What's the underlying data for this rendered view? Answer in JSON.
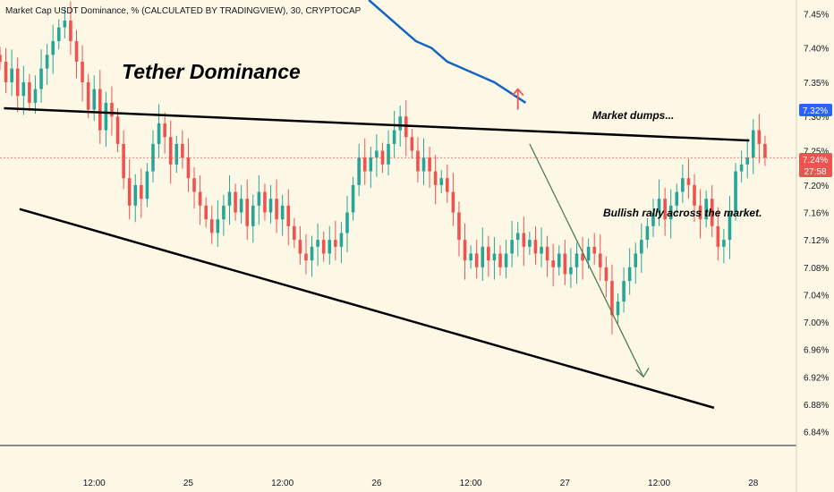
{
  "header": {
    "symbol_title": "Market Cap USDT Dominance, % (CALCULATED BY TRADINGVIEW), 30, CRYPTOCAP"
  },
  "annotations": {
    "headline": "Tether Dominance",
    "dump_note": "Market dumps...",
    "rally_note": "Bullish rally across the market."
  },
  "price_badge": {
    "ma_value": "7.32%",
    "last_value": "7.24%",
    "countdown": "27:58"
  },
  "colors": {
    "background": "#fdf8e6",
    "up": "#26a69a",
    "down": "#ef5350",
    "ma_line": "#1565c0",
    "trendline": "#000000",
    "projection": "#4f7a4f",
    "dump_arrow": "#ef5350",
    "ma_badge": "#2962ff",
    "last_badge": "#ef5350"
  },
  "chart_data": {
    "type": "candlestick",
    "title": "Market Cap USDT Dominance, % (CALCULATED BY TRADINGVIEW), 30, CRYPTOCAP",
    "y_axis": {
      "position": "right",
      "unit": "%",
      "ylim": [
        6.82,
        7.47
      ],
      "ticks": [
        "7.45%",
        "7.40%",
        "7.35%",
        "7.30%",
        "7.25%",
        "7.20%",
        "7.16%",
        "7.12%",
        "7.08%",
        "7.04%",
        "7.00%",
        "6.96%",
        "6.92%",
        "6.88%",
        "6.84%"
      ]
    },
    "x_axis": {
      "ticks": [
        {
          "label": "12:00",
          "t": 36
        },
        {
          "label": "25",
          "t": 60
        },
        {
          "label": "12:00",
          "t": 84
        },
        {
          "label": "26",
          "t": 108
        },
        {
          "label": "12:00",
          "t": 132
        },
        {
          "label": "27",
          "t": 156
        },
        {
          "label": "12:00",
          "t": 180
        },
        {
          "label": "28",
          "t": 204
        }
      ],
      "xlim": [
        12,
        215
      ]
    },
    "candles": {
      "t_start": 12,
      "closes": [
        7.38,
        7.35,
        7.37,
        7.33,
        7.35,
        7.32,
        7.34,
        7.37,
        7.39,
        7.41,
        7.43,
        7.44,
        7.41,
        7.38,
        7.35,
        7.31,
        7.34,
        7.28,
        7.32,
        7.3,
        7.26,
        7.21,
        7.17,
        7.2,
        7.18,
        7.22,
        7.26,
        7.29,
        7.27,
        7.23,
        7.26,
        7.24,
        7.21,
        7.19,
        7.17,
        7.15,
        7.13,
        7.15,
        7.17,
        7.19,
        7.16,
        7.18,
        7.14,
        7.17,
        7.19,
        7.16,
        7.18,
        7.15,
        7.17,
        7.14,
        7.12,
        7.1,
        7.09,
        7.11,
        7.12,
        7.1,
        7.12,
        7.11,
        7.13,
        7.16,
        7.2,
        7.24,
        7.22,
        7.24,
        7.25,
        7.23,
        7.26,
        7.28,
        7.3,
        7.27,
        7.25,
        7.22,
        7.24,
        7.22,
        7.2,
        7.21,
        7.19,
        7.16,
        7.12,
        7.09,
        7.1,
        7.08,
        7.11,
        7.09,
        7.1,
        7.08,
        7.1,
        7.12,
        7.13,
        7.11,
        7.12,
        7.1,
        7.11,
        7.09,
        7.08,
        7.1,
        7.07,
        7.08,
        7.1,
        7.09,
        7.11,
        7.1,
        7.08,
        7.06,
        7.01,
        7.03,
        7.06,
        7.08,
        7.1,
        7.12,
        7.14,
        7.16,
        7.18,
        7.15,
        7.17,
        7.19,
        7.21,
        7.2,
        7.17,
        7.15,
        7.18,
        7.14,
        7.11,
        7.12,
        7.16,
        7.22,
        7.23,
        7.24,
        7.28,
        7.26,
        7.24
      ]
    },
    "series": [
      {
        "type": "line",
        "points": [
          [
            106,
            7.47
          ],
          [
            110,
            7.45
          ],
          [
            114,
            7.43
          ],
          [
            118,
            7.41
          ],
          [
            122,
            7.4
          ],
          [
            126,
            7.38
          ],
          [
            130,
            7.37
          ],
          [
            134,
            7.36
          ],
          [
            138,
            7.35
          ],
          [
            142,
            7.335
          ],
          [
            146,
            7.32
          ]
        ]
      }
    ],
    "trendlines": [
      {
        "from": [
          13,
          7.312
        ],
        "to": [
          203,
          7.265
        ]
      },
      {
        "from": [
          17,
          7.165
        ],
        "to": [
          194,
          6.875
        ]
      }
    ],
    "projection_arrow": {
      "from": [
        147,
        7.26
      ],
      "to": [
        176,
        6.92
      ]
    },
    "dump_arrow": {
      "from": [
        144,
        7.31
      ],
      "to": [
        144,
        7.34
      ]
    }
  }
}
